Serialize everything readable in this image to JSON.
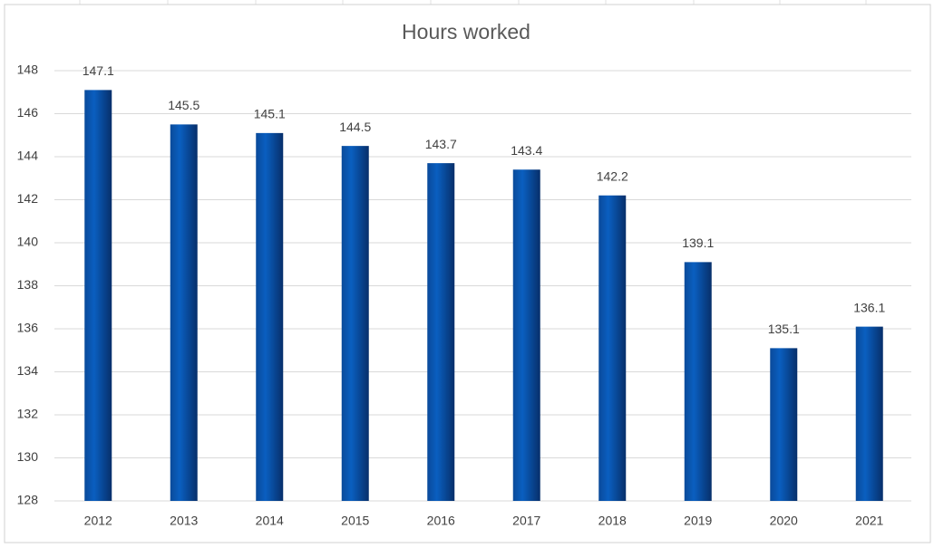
{
  "chart_data": {
    "type": "bar",
    "title": "Hours worked",
    "categories": [
      "2012",
      "2013",
      "2014",
      "2015",
      "2016",
      "2017",
      "2018",
      "2019",
      "2020",
      "2021"
    ],
    "values": [
      147.1,
      145.5,
      145.1,
      144.5,
      143.7,
      143.4,
      142.2,
      139.1,
      135.1,
      136.1
    ],
    "color": "#0a5fc0",
    "ylim": [
      128,
      148
    ],
    "yticks": [
      128,
      130,
      132,
      134,
      136,
      138,
      140,
      142,
      144,
      146,
      148
    ],
    "grid": true
  }
}
